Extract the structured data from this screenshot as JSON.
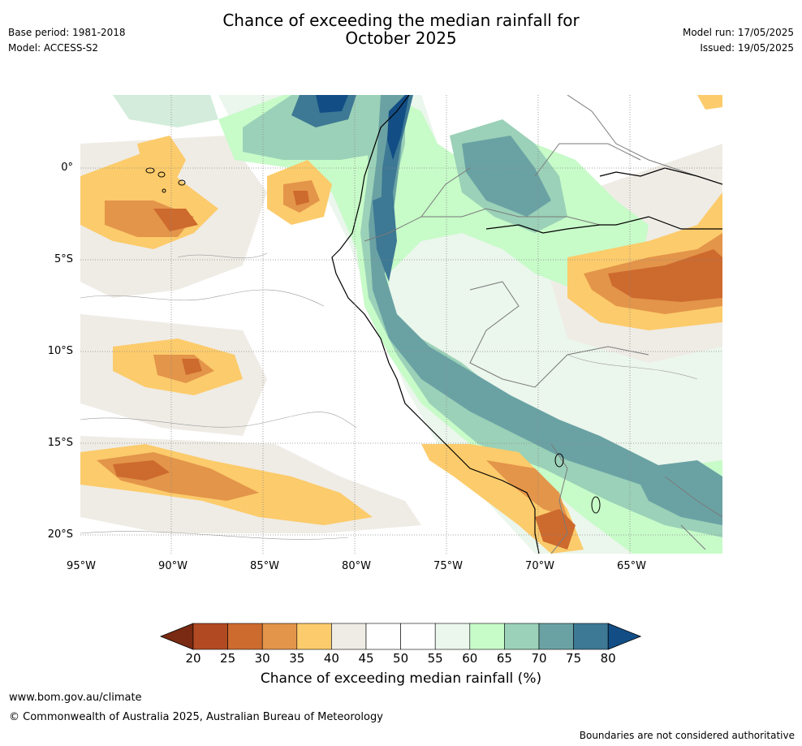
{
  "header": {
    "base_period": "Base period: 1981-2018",
    "model": "Model: ACCESS-S2",
    "title_line1": "Chance of exceeding the median rainfall for",
    "title_line2": "October 2025",
    "model_run": "Model run: 17/05/2025",
    "issued": "Issued: 19/05/2025"
  },
  "map": {
    "lat_labels": [
      "0°",
      "5°S",
      "10°S",
      "15°S",
      "20°S"
    ],
    "lon_labels": [
      "95°W",
      "90°W",
      "85°W",
      "80°W",
      "75°W",
      "70°W",
      "65°W"
    ]
  },
  "colorbar": {
    "ticks": [
      "20",
      "25",
      "30",
      "35",
      "40",
      "45",
      "50",
      "55",
      "60",
      "65",
      "70",
      "75",
      "80"
    ],
    "colors": [
      "#7a2a12",
      "#b14a22",
      "#cd6a2e",
      "#e3954a",
      "#fccb6b",
      "#efece6",
      "#ffffff",
      "#ffffff",
      "#ebf6ec",
      "#c7fbc8",
      "#9bd1b8",
      "#6aa2a4",
      "#3d7894",
      "#124e85"
    ],
    "label": "Chance of exceeding median rainfall (%)"
  },
  "footer": {
    "url": "www.bom.gov.au/climate",
    "copyright": "© Commonwealth of Australia 2025, Australian Bureau of Meteorology",
    "disclaimer": "Boundaries are not considered authoritative"
  }
}
